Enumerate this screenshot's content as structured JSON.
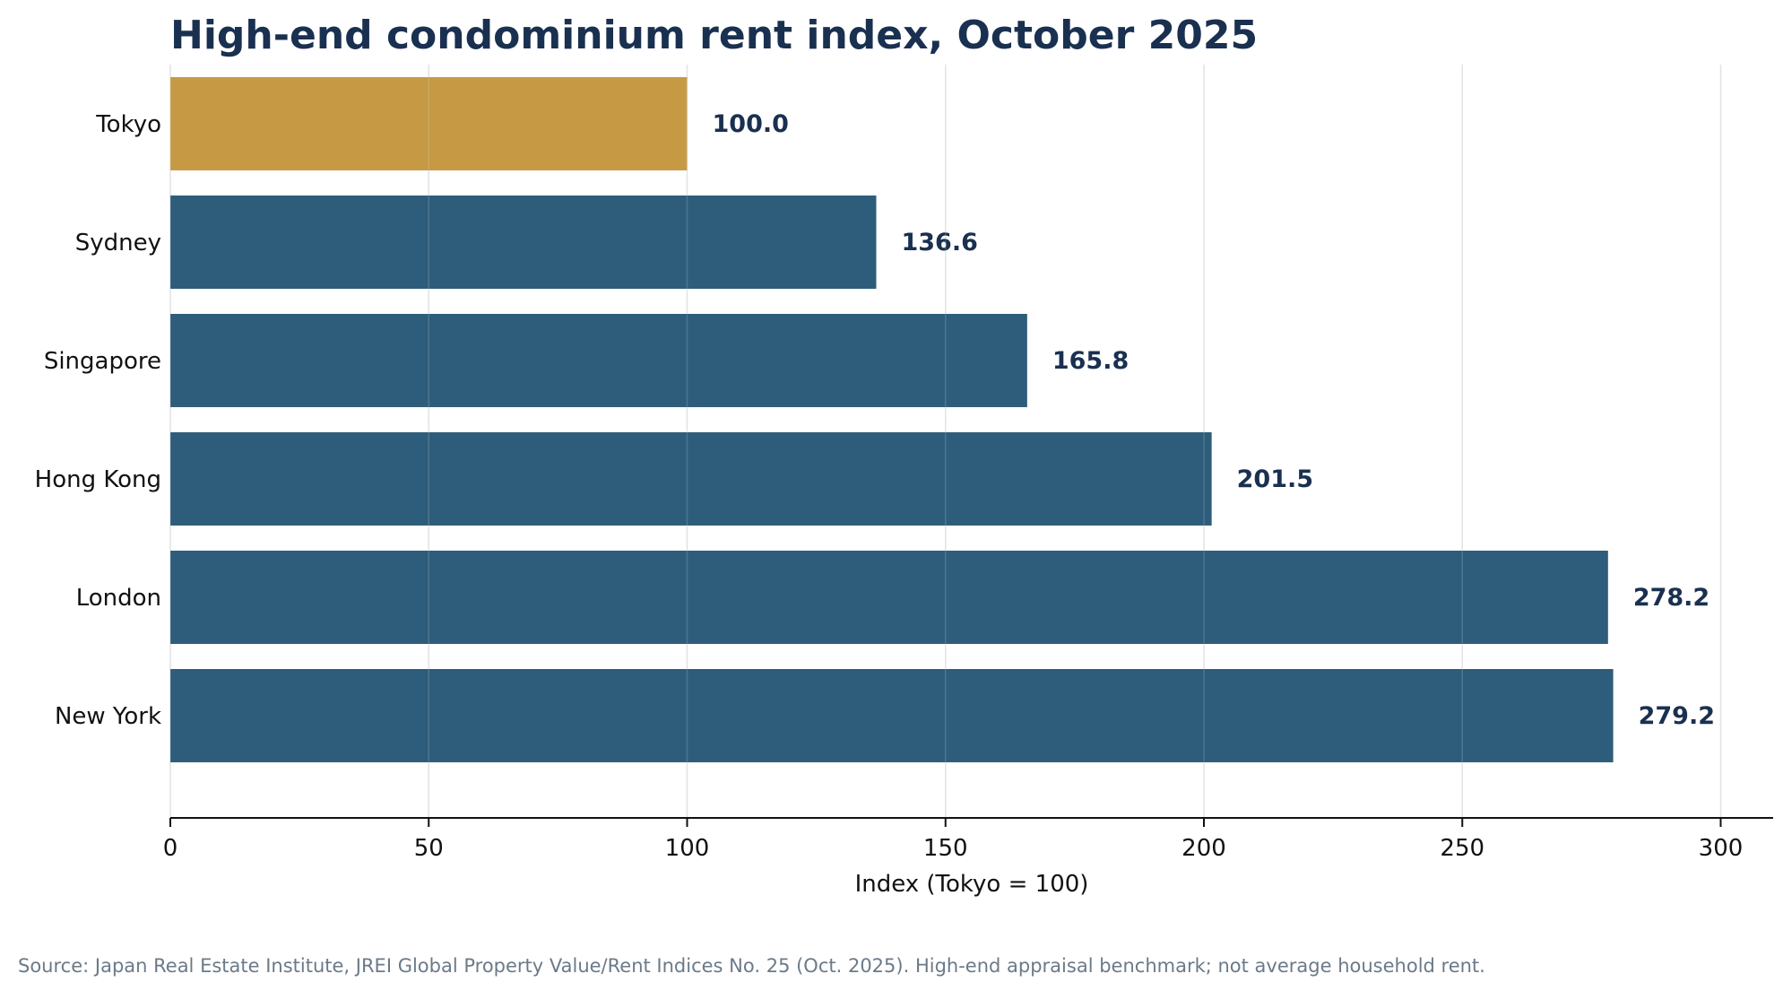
{
  "chart_data": {
    "type": "bar",
    "orientation": "horizontal",
    "title": "High-end condominium rent index, October 2025",
    "xlabel": "Index (Tokyo = 100)",
    "ylabel": "",
    "xlim": [
      0,
      310
    ],
    "xticks": [
      0,
      50,
      100,
      150,
      200,
      250,
      300
    ],
    "categories": [
      "Tokyo",
      "Sydney",
      "Singapore",
      "Hong Kong",
      "London",
      "New York"
    ],
    "values": [
      100.0,
      136.6,
      165.8,
      201.5,
      278.2,
      279.2
    ],
    "value_labels": [
      "100.0",
      "136.6",
      "165.8",
      "201.5",
      "278.2",
      "279.2"
    ],
    "highlight_category": "Tokyo",
    "colors": {
      "highlight": "#c69a45",
      "default": "#2e5d7b",
      "text": "#1a3050"
    },
    "grid": "vertical",
    "legend": "none",
    "source": "Source: Japan Real Estate Institute, JREI Global Property Value/Rent Indices No. 25 (Oct. 2025). High-end appraisal benchmark; not average household rent."
  }
}
